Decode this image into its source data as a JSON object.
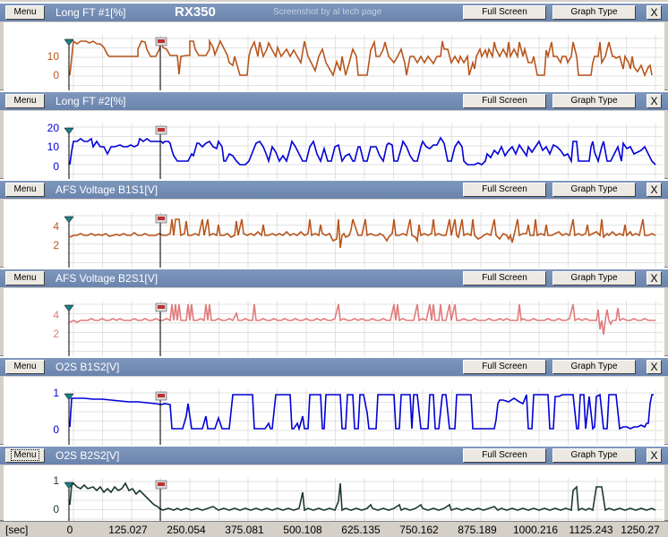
{
  "app_title": "RX350",
  "credit": "Screenshot by al tech page",
  "buttons": {
    "menu": "Menu",
    "full_screen": "Full Screen",
    "graph_type": "Graph Type",
    "close": "X"
  },
  "x_axis": {
    "unit": "[sec]",
    "ticks": [
      "0",
      "125.027",
      "250.054",
      "375.081",
      "500.108",
      "625.135",
      "750.162",
      "875.189",
      "1000.216",
      "1125.243",
      "1250.27"
    ]
  },
  "panels": [
    {
      "title": "Long FT #1[%]",
      "color": "#b8561c",
      "y_ticks": [
        "10",
        "0"
      ]
    },
    {
      "title": "Long FT #2[%]",
      "color": "#0000d8",
      "y_ticks": [
        "20",
        "10",
        "0"
      ]
    },
    {
      "title": "AFS Voltage B1S1[V]",
      "color": "#b8561c",
      "y_ticks": [
        "4",
        "2"
      ]
    },
    {
      "title": "AFS Voltage B2S1[V]",
      "color": "#e07b7b",
      "y_ticks": [
        "4",
        "2"
      ]
    },
    {
      "title": "O2S B1S2[V]",
      "color": "#0000d8",
      "y_ticks": [
        "1",
        "0"
      ]
    },
    {
      "title": "O2S B2S2[V]",
      "color": "#1e3b2e",
      "y_ticks": [
        "1",
        "0"
      ]
    }
  ]
}
